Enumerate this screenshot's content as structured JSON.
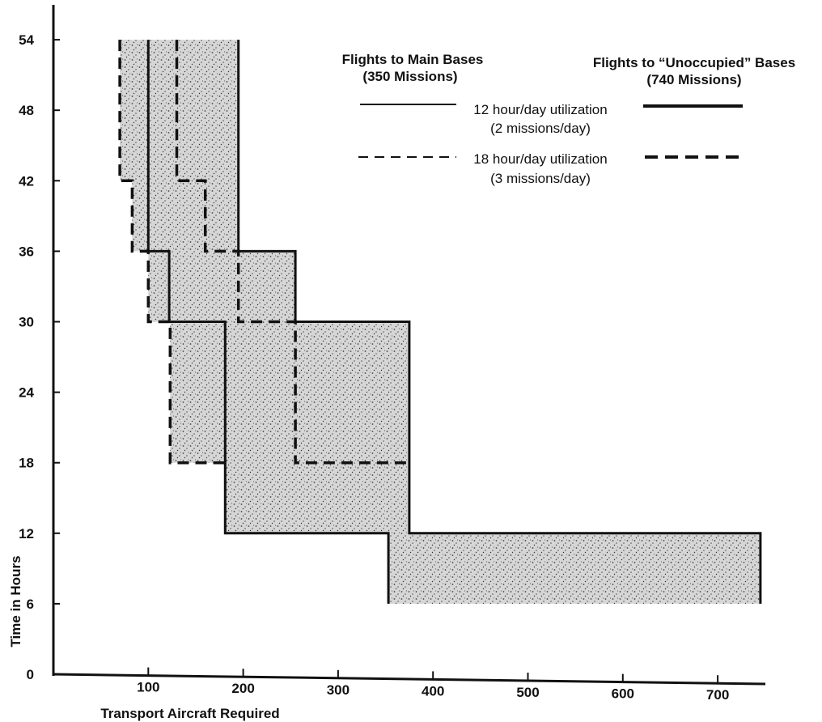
{
  "chart_data": {
    "type": "area",
    "xlabel": "Transport Aircraft Required",
    "ylabel": "Time in Hours",
    "xlim": [
      0,
      750
    ],
    "ylim": [
      0,
      58
    ],
    "x_ticks": [
      "100",
      "200",
      "300",
      "400",
      "500",
      "600",
      "700"
    ],
    "y_ticks": [
      "0",
      "6",
      "12",
      "18",
      "24",
      "30",
      "36",
      "42",
      "48",
      "54"
    ],
    "legend": {
      "main_header_1": "Flights to Main Bases",
      "main_header_2": "(350 Missions)",
      "unocc_header_1": "Flights to “Unoccupied” Bases",
      "unocc_header_2": "(740 Missions)",
      "solid_label_1": "12 hour/day utilization",
      "solid_label_2": "(2 missions/day)",
      "dashed_label_1": "18 hour/day utilization",
      "dashed_label_2": "(3 missions/day)"
    },
    "series": [
      {
        "name": "Flights to Main Bases — 12 hour/day utilization",
        "style": "solid",
        "points": [
          [
            100,
            54
          ],
          [
            100,
            36
          ],
          [
            122,
            36
          ],
          [
            122,
            30
          ],
          [
            181,
            30
          ],
          [
            181,
            12
          ],
          [
            353,
            12
          ],
          [
            353,
            6
          ]
        ]
      },
      {
        "name": "Flights to “Unoccupied” Bases — 12 hour/day utilization",
        "style": "solid",
        "points": [
          [
            195,
            54
          ],
          [
            195,
            36
          ],
          [
            255,
            36
          ],
          [
            255,
            30
          ],
          [
            375,
            30
          ],
          [
            375,
            12
          ],
          [
            745,
            12
          ],
          [
            745,
            6
          ]
        ]
      },
      {
        "name": "Flights to Main Bases — 18 hour/day utilization",
        "style": "dashed",
        "points": [
          [
            70,
            54
          ],
          [
            70,
            42
          ],
          [
            83,
            42
          ],
          [
            83,
            36
          ],
          [
            100,
            36
          ],
          [
            100,
            30
          ],
          [
            123,
            30
          ],
          [
            123,
            18
          ],
          [
            181,
            18
          ]
        ]
      },
      {
        "name": "Flights to “Unoccupied” Bases — 18 hour/day utilization",
        "style": "dashed",
        "points": [
          [
            130,
            54
          ],
          [
            130,
            42
          ],
          [
            160,
            42
          ],
          [
            160,
            36
          ],
          [
            195,
            36
          ],
          [
            195,
            30
          ],
          [
            255,
            30
          ],
          [
            255,
            18
          ],
          [
            375,
            18
          ]
        ]
      }
    ],
    "shaded_region": {
      "left_boundary": [
        [
          70,
          54
        ],
        [
          70,
          42
        ],
        [
          83,
          42
        ],
        [
          83,
          36
        ],
        [
          100,
          36
        ],
        [
          100,
          30
        ],
        [
          123,
          30
        ],
        [
          123,
          18
        ],
        [
          181,
          18
        ],
        [
          181,
          12
        ],
        [
          353,
          12
        ],
        [
          353,
          6
        ]
      ],
      "right_boundary": [
        [
          195,
          54
        ],
        [
          195,
          36
        ],
        [
          255,
          36
        ],
        [
          255,
          30
        ],
        [
          375,
          30
        ],
        [
          375,
          12
        ],
        [
          745,
          12
        ],
        [
          745,
          6
        ]
      ]
    },
    "colors": {
      "ink": "#111111",
      "shade": "#cfcfcf"
    }
  }
}
